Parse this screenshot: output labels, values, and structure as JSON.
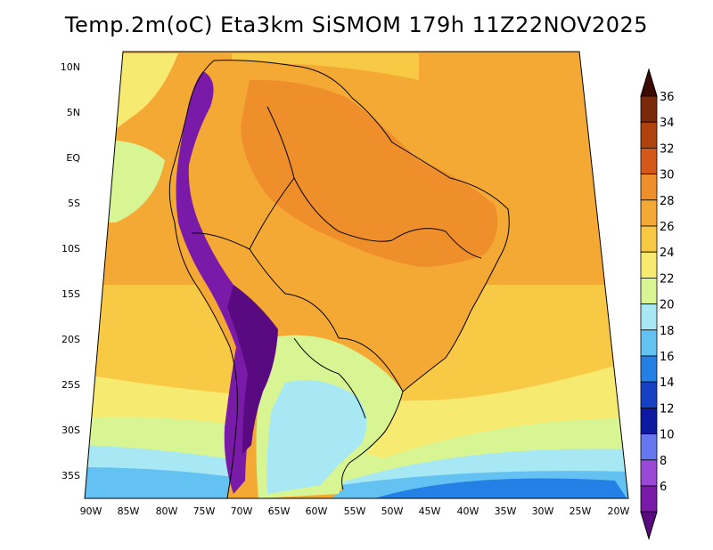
{
  "title": "Temp.2m(oC) Eta3km SiSMOM 179h 11Z22NOV2025",
  "axes": {
    "lat_labels": [
      "10N",
      "5N",
      "EQ",
      "5S",
      "10S",
      "15S",
      "20S",
      "25S",
      "30S",
      "35S"
    ],
    "lon_labels": [
      "90W",
      "85W",
      "80W",
      "75W",
      "70W",
      "65W",
      "60W",
      "55W",
      "50W",
      "45W",
      "40W",
      "35W",
      "30W",
      "25W",
      "20W"
    ]
  },
  "colorbar": {
    "ticks": [
      "36",
      "34",
      "32",
      "30",
      "28",
      "26",
      "24",
      "22",
      "20",
      "18",
      "16",
      "14",
      "12",
      "10",
      "8",
      "6"
    ],
    "colors": [
      "#3b0a00",
      "#7a2a0a",
      "#b0420e",
      "#d4581a",
      "#ef8f2c",
      "#f5a935",
      "#f8c944",
      "#f7ea70",
      "#d8f593",
      "#a8e8f4",
      "#64c2f2",
      "#2580e6",
      "#1641c4",
      "#0b1aa0",
      "#6677f0",
      "#9a49d6",
      "#7a1aa8",
      "#5a0a80"
    ]
  },
  "map_colors": {
    "ocean_warm": "#f5a935",
    "ocean_mild": "#f8c944",
    "ocean_cool": "#f7ea70",
    "ocean_cooler": "#d8f593",
    "ocean_cold": "#a8e8f4",
    "ocean_colder": "#64c2f2",
    "ocean_coldest": "#2580e6",
    "land_hot": "#ef8f2c",
    "land_warm": "#f5a935",
    "andes_high": "#7a1aa8",
    "andes_peak": "#5a0a80"
  }
}
